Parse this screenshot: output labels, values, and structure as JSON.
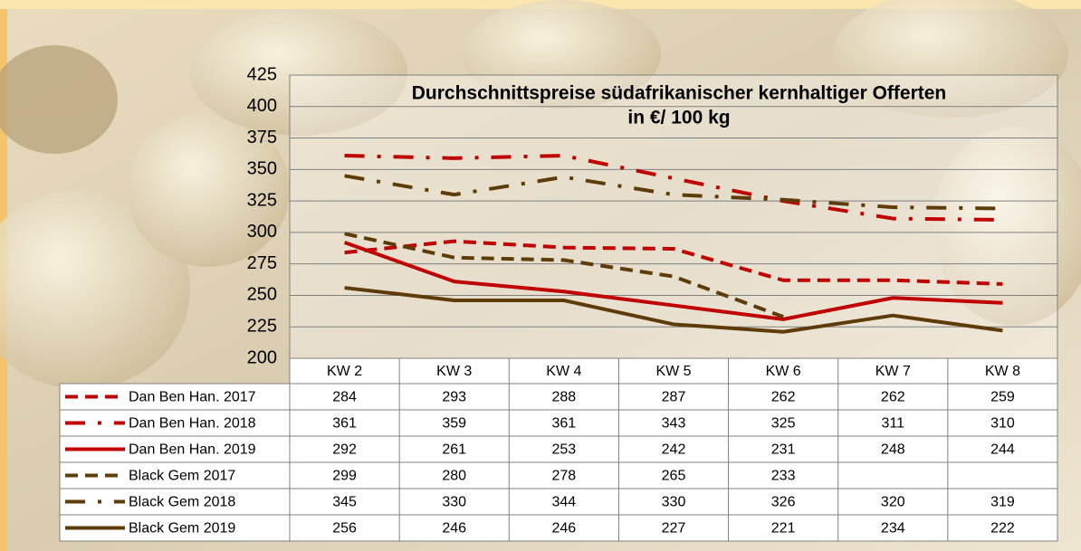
{
  "chart_data": {
    "type": "line",
    "title": "Durchschnittspreise südafrikanischer kernhaltiger Offerten",
    "subtitle": "in €/ 100 kg",
    "categories": [
      "KW 2",
      "KW 3",
      "KW 4",
      "KW 5",
      "KW 6",
      "KW 7",
      "KW 8"
    ],
    "ylim": [
      200,
      425
    ],
    "yticks": [
      200,
      225,
      250,
      275,
      300,
      325,
      350,
      375,
      400,
      425
    ],
    "grid": true,
    "series": [
      {
        "name": "Dan Ben Han. 2017",
        "color": "#c00000",
        "style": "dashed",
        "values": [
          284,
          293,
          288,
          287,
          262,
          262,
          259
        ]
      },
      {
        "name": "Dan Ben Han. 2018",
        "color": "#c00000",
        "style": "dash-dot",
        "values": [
          361,
          359,
          361,
          343,
          325,
          311,
          310
        ]
      },
      {
        "name": "Dan Ben Han. 2019",
        "color": "#c00000",
        "style": "solid",
        "values": [
          292,
          261,
          253,
          242,
          231,
          248,
          244
        ]
      },
      {
        "name": "Black Gem 2017",
        "color": "#5e3c0a",
        "style": "dashed",
        "values": [
          299,
          280,
          278,
          265,
          233,
          null,
          null
        ]
      },
      {
        "name": "Black Gem 2018",
        "color": "#5e3c0a",
        "style": "dash-dot",
        "values": [
          345,
          330,
          344,
          330,
          326,
          320,
          319
        ]
      },
      {
        "name": "Black Gem 2019",
        "color": "#5e3c0a",
        "style": "solid",
        "values": [
          256,
          246,
          246,
          227,
          221,
          234,
          222
        ]
      }
    ]
  }
}
